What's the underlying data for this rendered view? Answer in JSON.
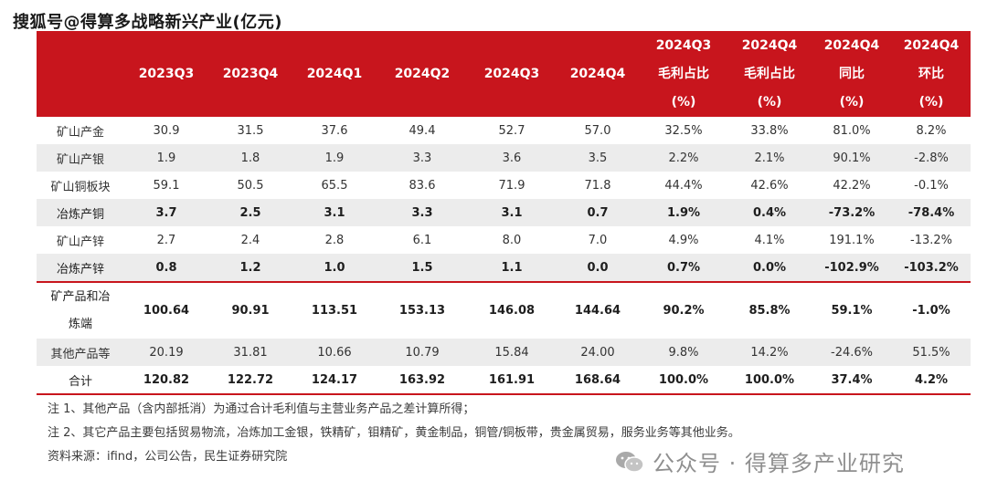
{
  "headline": "搜狐号@得算多战略新兴产业(亿元)",
  "table": {
    "headers": [
      {
        "lines": [
          ""
        ]
      },
      {
        "lines": [
          "2023Q3"
        ]
      },
      {
        "lines": [
          "2023Q4"
        ]
      },
      {
        "lines": [
          "2024Q1"
        ]
      },
      {
        "lines": [
          "2024Q2"
        ]
      },
      {
        "lines": [
          "2024Q3"
        ]
      },
      {
        "lines": [
          "2024Q4"
        ]
      },
      {
        "lines": [
          "2024Q3",
          "毛利占比",
          "(%)"
        ]
      },
      {
        "lines": [
          "2024Q4",
          "毛利占比",
          "(%)"
        ]
      },
      {
        "lines": [
          "2024Q4",
          "同比",
          "(%)"
        ]
      },
      {
        "lines": [
          "2024Q4",
          "环比",
          "(%)"
        ]
      }
    ],
    "rows": [
      {
        "name": "矿山产金",
        "cells": [
          "30.9",
          "31.5",
          "37.6",
          "49.4",
          "52.7",
          "57.0",
          "32.5%",
          "33.8%",
          "81.0%",
          "8.2%"
        ],
        "shade": false,
        "bold": false
      },
      {
        "name": "矿山产银",
        "cells": [
          "1.9",
          "1.8",
          "1.9",
          "3.3",
          "3.6",
          "3.5",
          "2.2%",
          "2.1%",
          "90.1%",
          "-2.8%"
        ],
        "shade": true,
        "bold": false
      },
      {
        "name": "矿山铜板块",
        "cells": [
          "59.1",
          "50.5",
          "65.5",
          "83.6",
          "71.9",
          "71.8",
          "44.4%",
          "42.6%",
          "42.2%",
          "-0.1%"
        ],
        "shade": false,
        "bold": false
      },
      {
        "name": "冶炼产铜",
        "cells": [
          "3.7",
          "2.5",
          "3.1",
          "3.3",
          "3.1",
          "0.7",
          "1.9%",
          "0.4%",
          "-73.2%",
          "-78.4%"
        ],
        "shade": true,
        "bold": true
      },
      {
        "name": "矿山产锌",
        "cells": [
          "2.7",
          "2.4",
          "2.8",
          "6.1",
          "8.0",
          "7.0",
          "4.9%",
          "4.1%",
          "191.1%",
          "-13.2%"
        ],
        "shade": false,
        "bold": false
      },
      {
        "name": "冶炼产锌",
        "cells": [
          "0.8",
          "1.2",
          "1.0",
          "1.5",
          "1.1",
          "0.0",
          "0.7%",
          "0.0%",
          "-102.9%",
          "-103.2%"
        ],
        "shade": true,
        "bold": true
      },
      {
        "name_lines": [
          "矿产品和冶",
          "炼端"
        ],
        "cells": [
          "100.64",
          "90.91",
          "113.51",
          "153.13",
          "146.08",
          "144.64",
          "90.2%",
          "85.8%",
          "59.1%",
          "-1.0%"
        ],
        "shade": false,
        "bold": true,
        "tall": true,
        "sep": true
      },
      {
        "name": "其他产品等",
        "cells": [
          "20.19",
          "31.81",
          "10.66",
          "10.79",
          "15.84",
          "24.00",
          "9.8%",
          "14.2%",
          "-24.6%",
          "51.5%"
        ],
        "shade": true,
        "bold": false
      },
      {
        "name": "合计",
        "cells": [
          "120.82",
          "122.72",
          "124.17",
          "163.92",
          "161.91",
          "168.64",
          "100.0%",
          "100.0%",
          "37.4%",
          "4.2%"
        ],
        "shade": false,
        "bold": true,
        "last": true
      }
    ]
  },
  "notes": [
    "注 1、其他产品（含内部抵消）为通过合计毛利值与主营业务产品之差计算所得；",
    "注 2、其它产品主要包括贸易物流，冶炼加工金银，铁精矿，钼精矿，黄金制品，铜管/铜板带，贵金属贸易，服务业务等其他业务。",
    "资料来源：ifind，公司公告，民生证券研究院"
  ],
  "watermark": {
    "text": "公众号 · 得算多产业研究",
    "icon": "wechat-icon"
  },
  "colors": {
    "header_bg": "#c8151d",
    "shade_bg": "#ececec",
    "header_text": "#ffffff"
  }
}
